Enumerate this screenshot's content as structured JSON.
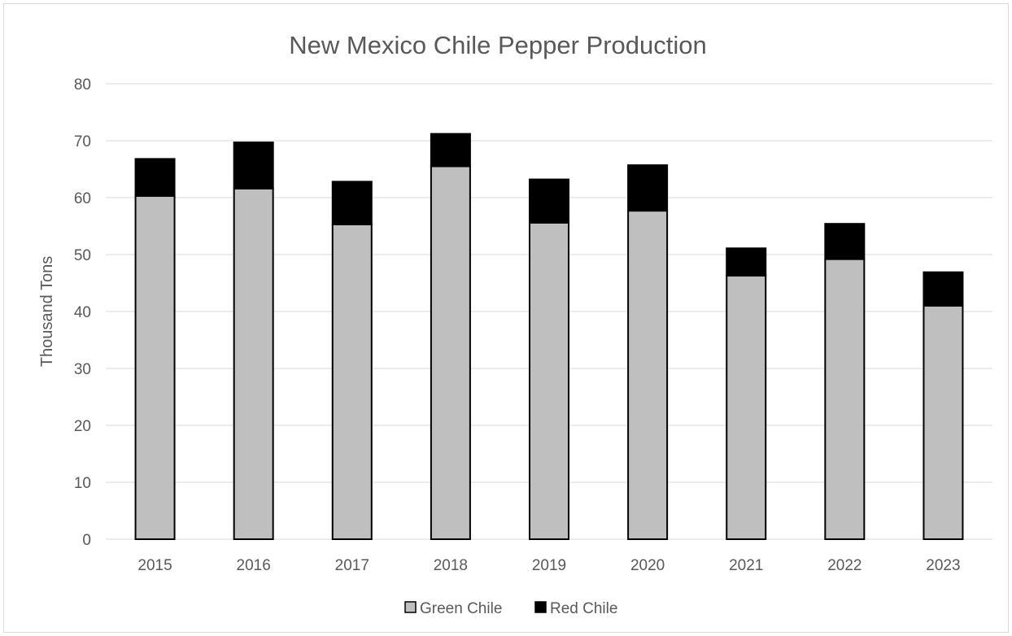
{
  "chart_data": {
    "type": "bar",
    "stacked": true,
    "title": "New Mexico Chile Pepper Production",
    "xlabel": "",
    "ylabel": "Thousand Tons",
    "categories": [
      "2015",
      "2016",
      "2017",
      "2018",
      "2019",
      "2020",
      "2021",
      "2022",
      "2023"
    ],
    "series": [
      {
        "name": "Green Chile",
        "color": "#bfbfbf",
        "values": [
          60.3,
          61.6,
          55.3,
          65.5,
          55.6,
          57.7,
          46.3,
          49.2,
          41.0
        ]
      },
      {
        "name": "Red Chile",
        "color": "#000000",
        "values": [
          6.5,
          8.1,
          7.5,
          5.7,
          7.6,
          8.0,
          4.8,
          6.2,
          5.9
        ]
      }
    ],
    "ylim": [
      0,
      80
    ],
    "yticks": [
      0,
      10,
      20,
      30,
      40,
      50,
      60,
      70,
      80
    ],
    "grid": true,
    "legend_position": "bottom"
  }
}
